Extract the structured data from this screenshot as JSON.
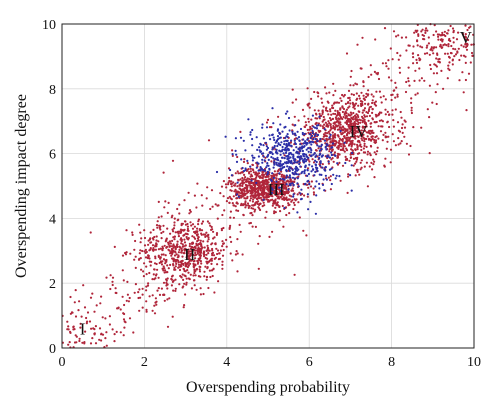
{
  "chart_data": {
    "type": "scatter",
    "title": "",
    "xlabel": "Overspending probability",
    "ylabel": "Overspending impact degree",
    "xlim": [
      0,
      10
    ],
    "ylim": [
      0,
      10
    ],
    "x_ticks": [
      "0",
      "2",
      "4",
      "6",
      "8",
      "10"
    ],
    "y_ticks": [
      "0",
      "2",
      "4",
      "6",
      "8",
      "10"
    ],
    "grid": true,
    "legend": "none",
    "series": [
      {
        "color": "#b0253a",
        "clusters": [
          {
            "label": "I",
            "center": [
              0.4,
              0.5
            ],
            "spread": [
              0.5,
              0.45
            ],
            "count": 60
          },
          {
            "label": "II",
            "center": [
              3.0,
              3.0
            ],
            "spread": [
              0.55,
              0.5
            ],
            "count": 520
          },
          {
            "label": "III",
            "center": [
              4.9,
              4.95
            ],
            "spread": [
              0.42,
              0.32
            ],
            "count": 700
          },
          {
            "label": "IV",
            "center": [
              6.9,
              6.7
            ],
            "spread": [
              0.6,
              0.55
            ],
            "count": 720
          },
          {
            "label": "V",
            "center": [
              9.3,
              9.4
            ],
            "spread": [
              0.55,
              0.5
            ],
            "count": 160
          }
        ],
        "background": {
          "band": "diagonal",
          "x_range": [
            0,
            10
          ],
          "spread": 0.9,
          "count": 700
        }
      },
      {
        "color": "#2b2fa8",
        "clusters": [
          {
            "label": "",
            "center": [
              5.6,
              5.9
            ],
            "spread": [
              0.55,
              0.5
            ],
            "count": 520
          }
        ]
      }
    ],
    "cluster_labels": [
      {
        "text": "I",
        "x": 0.5,
        "y": 0.6
      },
      {
        "text": "II",
        "x": 3.1,
        "y": 2.9
      },
      {
        "text": "III",
        "x": 5.2,
        "y": 4.9
      },
      {
        "text": "IV",
        "x": 7.2,
        "y": 6.7
      },
      {
        "text": "V",
        "x": 9.8,
        "y": 9.6
      }
    ]
  }
}
